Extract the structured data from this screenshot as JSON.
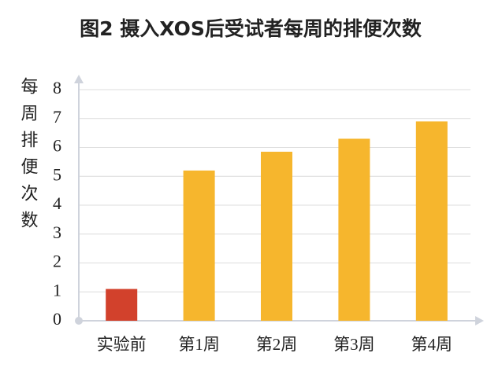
{
  "chart_data": {
    "type": "bar",
    "title": "图2  摄入XOS后受试者每周的排便次数",
    "y_label": "每周排便次数",
    "categories": [
      "实验前",
      "第1周",
      "第2周",
      "第3周",
      "第4周"
    ],
    "values": [
      1.1,
      5.2,
      5.85,
      6.3,
      6.9
    ],
    "colors": [
      "#d2412c",
      "#f6b62d",
      "#f6b62d",
      "#f6b62d",
      "#f6b62d"
    ],
    "ylim": [
      0,
      8
    ],
    "yticks": [
      0,
      1,
      2,
      3,
      4,
      5,
      6,
      7,
      8
    ],
    "grid": true
  }
}
